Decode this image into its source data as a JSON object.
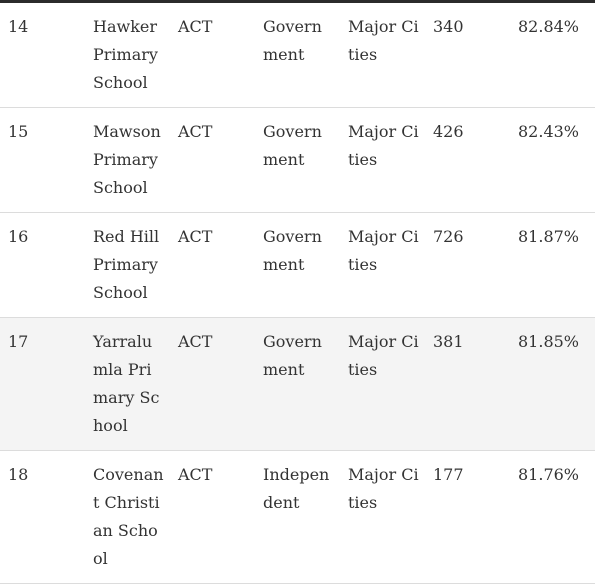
{
  "rows": [
    {
      "rank": "14",
      "school": "Hawker Primary School",
      "state": "ACT",
      "sector": "Government",
      "geolocation": "Major Cities",
      "enrolments": "340",
      "percent": "82.84%"
    },
    {
      "rank": "15",
      "school": "Mawson Primary School",
      "state": "ACT",
      "sector": "Government",
      "geolocation": "Major Cities",
      "enrolments": "426",
      "percent": "82.43%"
    },
    {
      "rank": "16",
      "school": "Red Hill Primary School",
      "state": "ACT",
      "sector": "Government",
      "geolocation": "Major Cities",
      "enrolments": "726",
      "percent": "81.87%"
    },
    {
      "rank": "17",
      "school": "Yarralumla Primary School",
      "state": "ACT",
      "sector": "Government",
      "geolocation": "Major Cities",
      "enrolments": "381",
      "percent": "81.85%"
    },
    {
      "rank": "18",
      "school": "Covenant Christian School",
      "state": "ACT",
      "sector": "Independent",
      "geolocation": "Major Cities",
      "enrolments": "177",
      "percent": "81.76%"
    }
  ]
}
